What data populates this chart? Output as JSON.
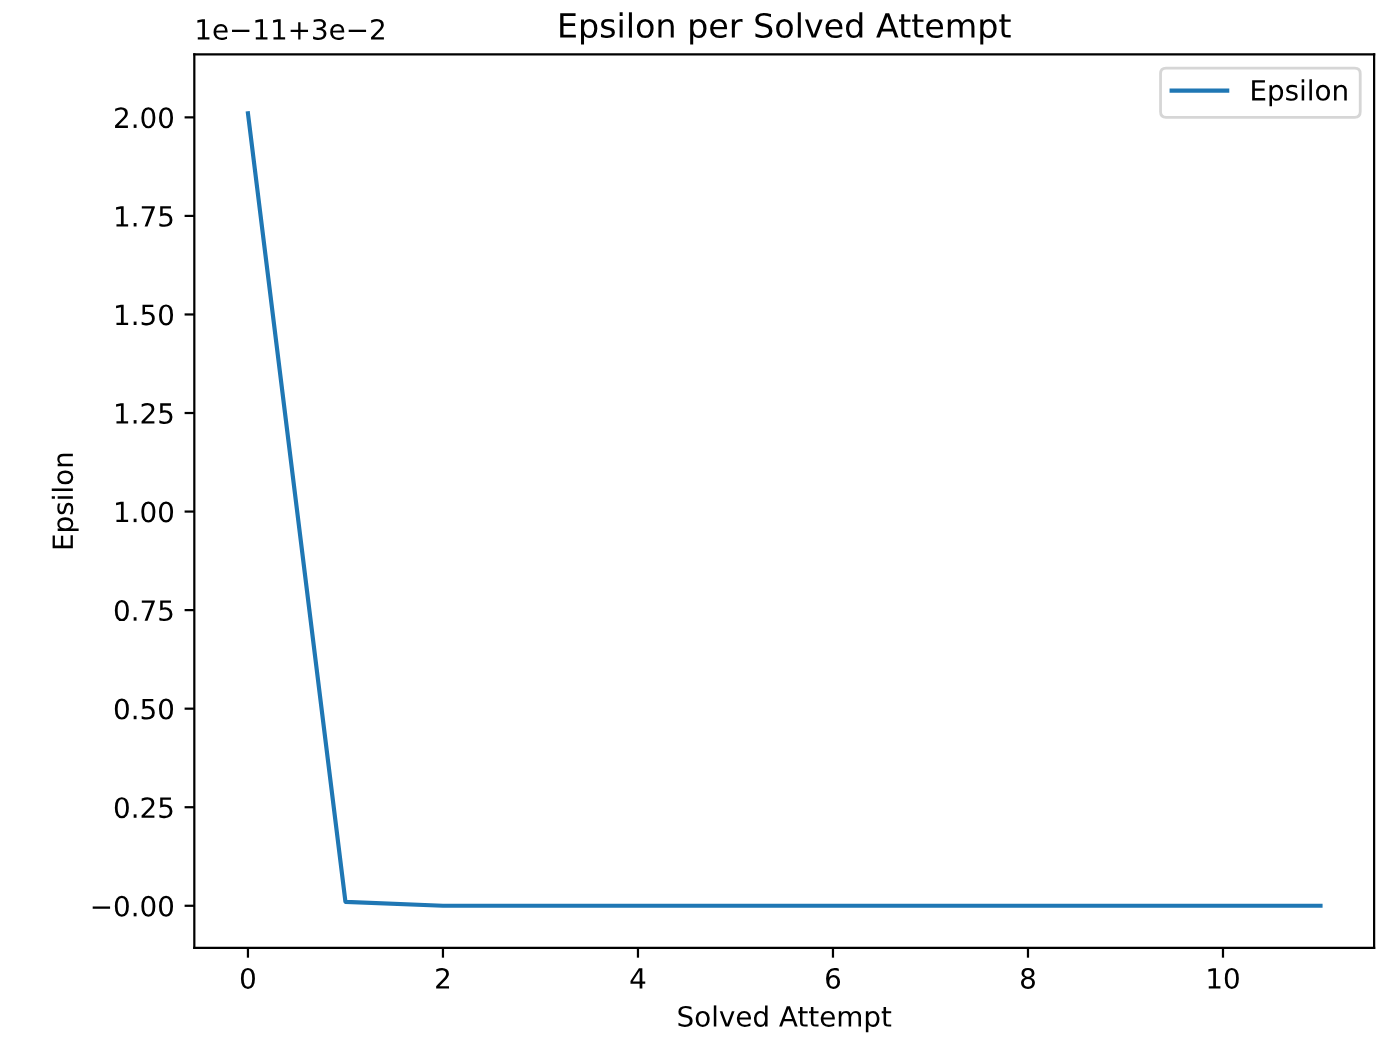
{
  "chart_data": {
    "type": "line",
    "title": "Epsilon per Solved Attempt",
    "xlabel": "Solved Attempt",
    "ylabel": "Epsilon",
    "annotations": [
      "1e−11+3e−2"
    ],
    "x": [
      0,
      1,
      2,
      3,
      4,
      5,
      6,
      7,
      8,
      9,
      10,
      11
    ],
    "series": [
      {
        "name": "Epsilon",
        "color": "#1f77b4",
        "values": [
          2.01,
          0.01,
          0.0,
          0.0,
          0.0,
          0.0,
          0.0,
          0.0,
          0.0,
          0.0,
          0.0,
          0.0
        ]
      }
    ],
    "xlim": [
      -0.55,
      11.55
    ],
    "xticks": [
      0,
      2,
      4,
      6,
      8,
      10
    ],
    "ylim": [
      -0.107,
      2.16
    ],
    "yticks": [
      {
        "value": 0,
        "label": "−0.00"
      },
      {
        "value": 0.25,
        "label": "0.25"
      },
      {
        "value": 0.5,
        "label": "0.50"
      },
      {
        "value": 0.75,
        "label": "0.75"
      },
      {
        "value": 1.0,
        "label": "1.00"
      },
      {
        "value": 1.25,
        "label": "1.25"
      },
      {
        "value": 1.5,
        "label": "1.50"
      },
      {
        "value": 1.75,
        "label": "1.75"
      },
      {
        "value": 2.0,
        "label": "2.00"
      }
    ],
    "legend": "top right",
    "grid": false
  }
}
